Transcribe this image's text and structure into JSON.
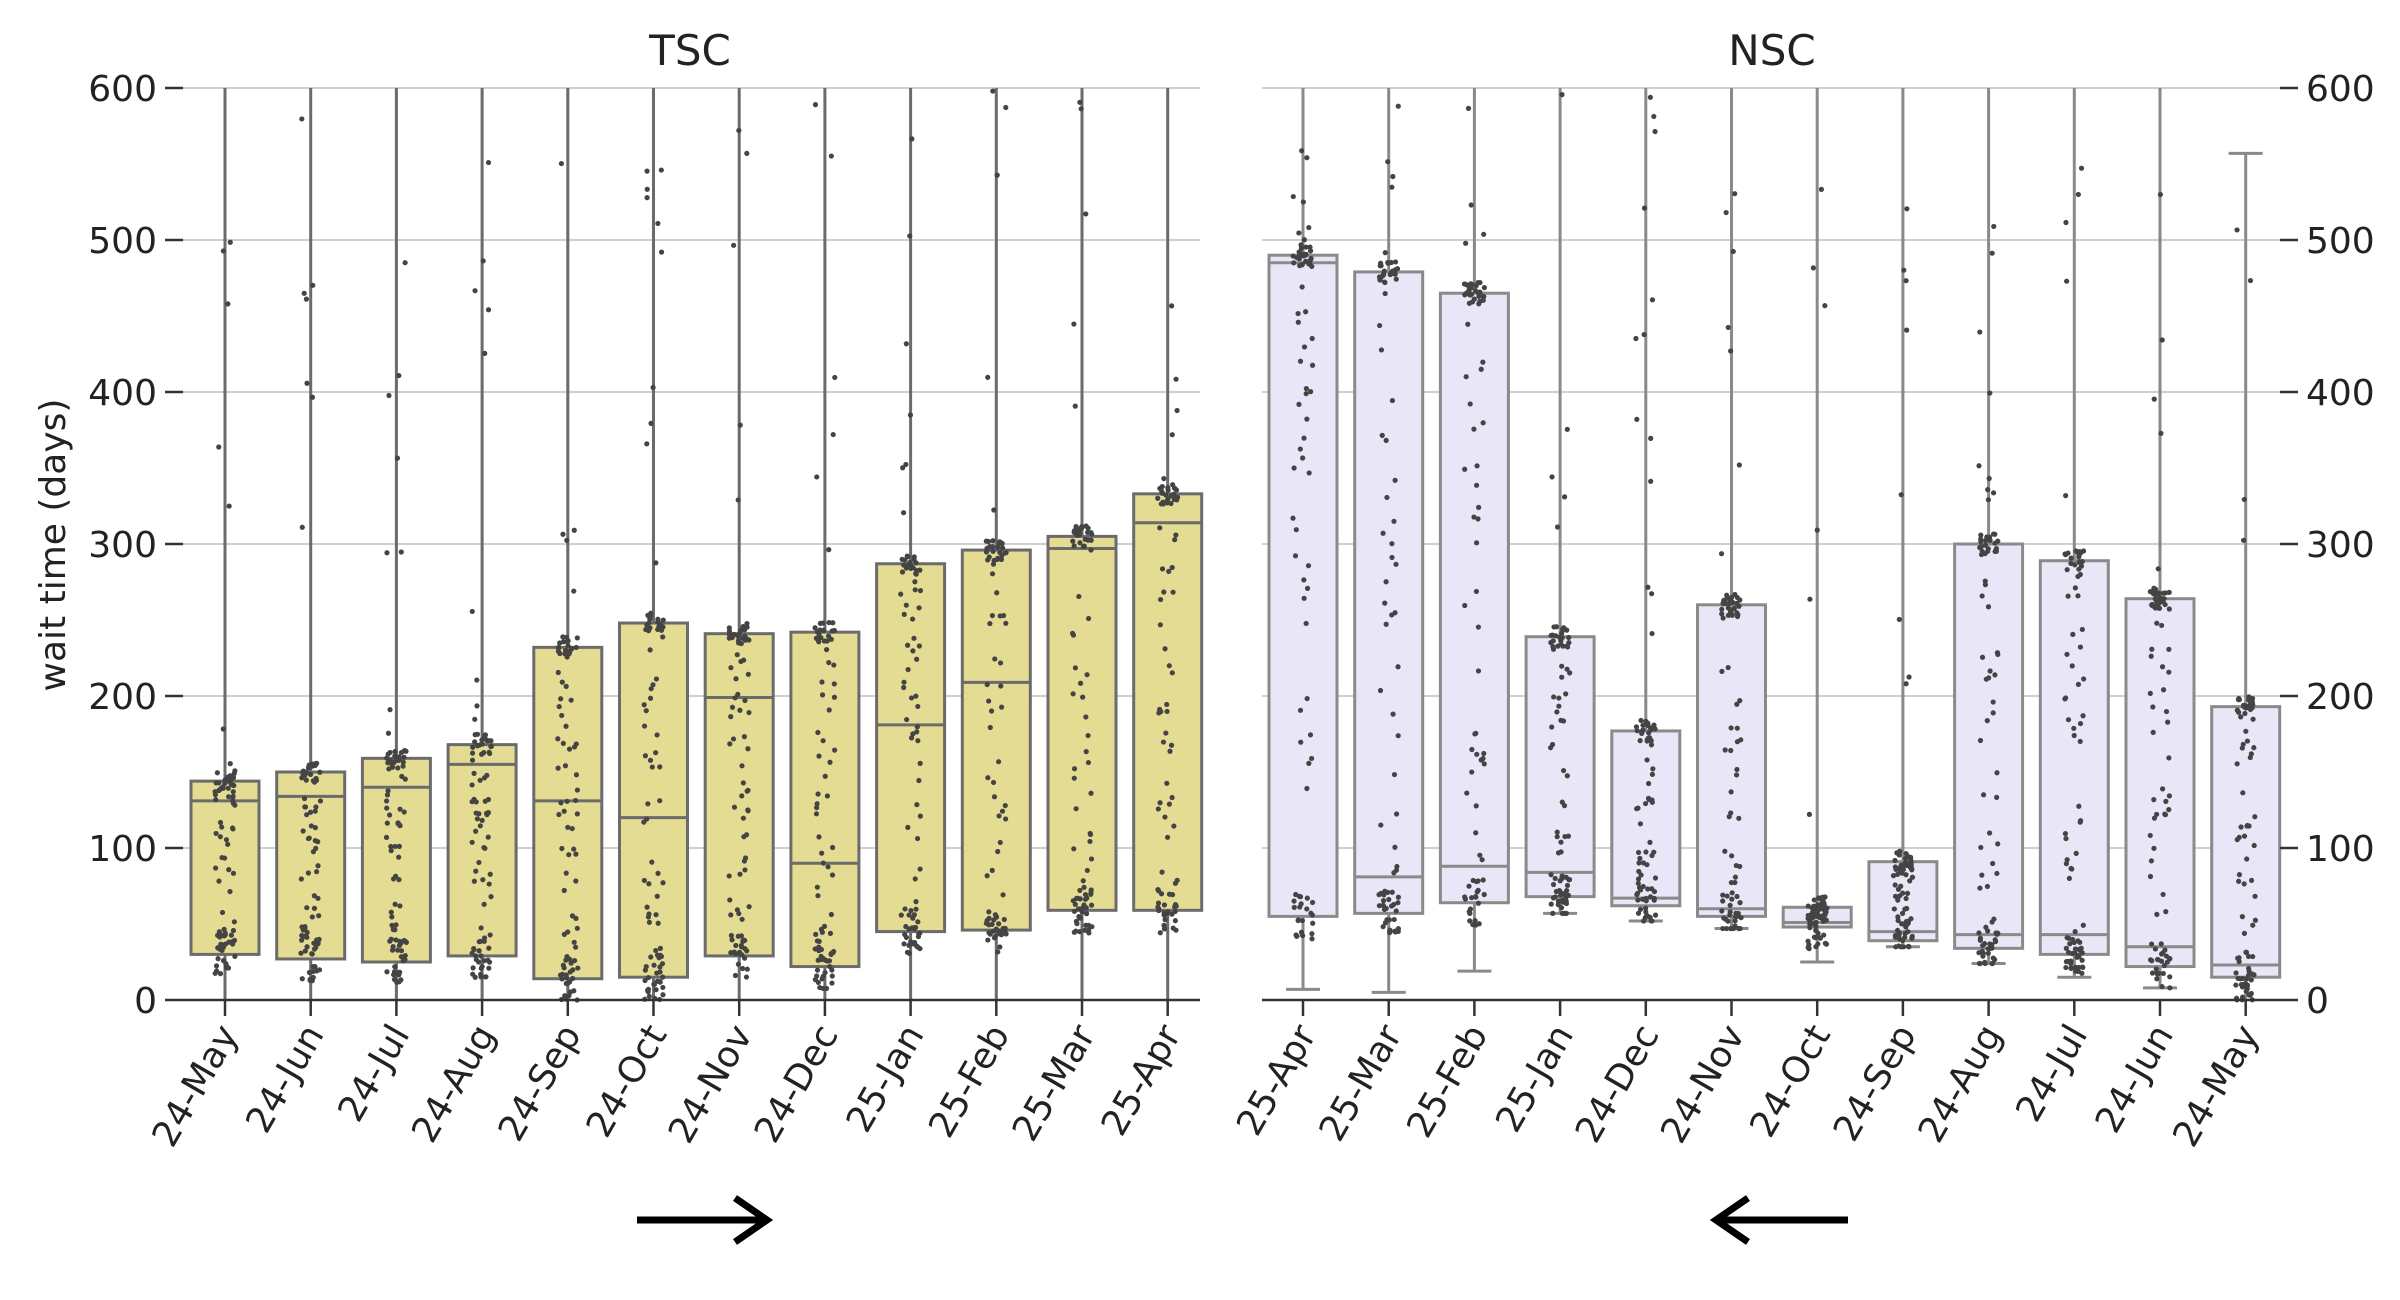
{
  "chart_data": [
    {
      "type": "box",
      "title": "TSC",
      "ylabel": "wait time (days)",
      "ylim": [
        0,
        600
      ],
      "yticks": [
        0,
        100,
        200,
        300,
        400,
        500,
        600
      ],
      "ytick_side": "left",
      "grid": true,
      "box_color": "#e5dc93",
      "edge_color": "#6b6b6b",
      "point_color": "#444444",
      "direction_arrow": "right",
      "categories": [
        "24-May",
        "24-Jun",
        "24-Jul",
        "24-Aug",
        "24-Sep",
        "24-Oct",
        "24-Nov",
        "24-Dec",
        "25-Jan",
        "25-Feb",
        "25-Mar",
        "25-Apr"
      ],
      "boxes": [
        {
          "q1": 30,
          "median": 131,
          "q3": 144,
          "whisker_low": 0,
          "whisker_high": 600
        },
        {
          "q1": 27,
          "median": 134,
          "q3": 150,
          "whisker_low": 0,
          "whisker_high": 600
        },
        {
          "q1": 25,
          "median": 140,
          "q3": 159,
          "whisker_low": 0,
          "whisker_high": 600
        },
        {
          "q1": 29,
          "median": 155,
          "q3": 168,
          "whisker_low": 0,
          "whisker_high": 600
        },
        {
          "q1": 14,
          "median": 131,
          "q3": 232,
          "whisker_low": 0,
          "whisker_high": 600
        },
        {
          "q1": 15,
          "median": 120,
          "q3": 248,
          "whisker_low": 0,
          "whisker_high": 600
        },
        {
          "q1": 29,
          "median": 199,
          "q3": 241,
          "whisker_low": 0,
          "whisker_high": 600
        },
        {
          "q1": 22,
          "median": 90,
          "q3": 242,
          "whisker_low": 0,
          "whisker_high": 600
        },
        {
          "q1": 45,
          "median": 181,
          "q3": 287,
          "whisker_low": 0,
          "whisker_high": 600
        },
        {
          "q1": 46,
          "median": 209,
          "q3": 296,
          "whisker_low": 0,
          "whisker_high": 600
        },
        {
          "q1": 59,
          "median": 297,
          "q3": 305,
          "whisker_low": 0,
          "whisker_high": 600
        },
        {
          "q1": 59,
          "median": 314,
          "q3": 333,
          "whisker_low": 0,
          "whisker_high": 600
        }
      ]
    },
    {
      "type": "box",
      "title": "NSC",
      "ylabel": "",
      "ylim": [
        0,
        600
      ],
      "yticks": [
        0,
        100,
        200,
        300,
        400,
        500,
        600
      ],
      "ytick_side": "right",
      "grid": true,
      "box_color": "#e8e6f7",
      "edge_color": "#8a8a8a",
      "point_color": "#444444",
      "direction_arrow": "left",
      "categories": [
        "25-Apr",
        "25-Mar",
        "25-Feb",
        "25-Jan",
        "24-Dec",
        "24-Nov",
        "24-Oct",
        "24-Sep",
        "24-Aug",
        "24-Jul",
        "24-Jun",
        "24-May"
      ],
      "boxes": [
        {
          "q1": 55,
          "median": 485,
          "q3": 490,
          "whisker_low": 7,
          "whisker_high": 600
        },
        {
          "q1": 57,
          "median": 81,
          "q3": 479,
          "whisker_low": 5,
          "whisker_high": 600
        },
        {
          "q1": 64,
          "median": 88,
          "q3": 465,
          "whisker_low": 19,
          "whisker_high": 600
        },
        {
          "q1": 68,
          "median": 84,
          "q3": 239,
          "whisker_low": 57,
          "whisker_high": 600
        },
        {
          "q1": 62,
          "median": 67,
          "q3": 177,
          "whisker_low": 52,
          "whisker_high": 600
        },
        {
          "q1": 55,
          "median": 60,
          "q3": 260,
          "whisker_low": 47,
          "whisker_high": 600
        },
        {
          "q1": 48,
          "median": 51,
          "q3": 61,
          "whisker_low": 25,
          "whisker_high": 600
        },
        {
          "q1": 39,
          "median": 45,
          "q3": 91,
          "whisker_low": 35,
          "whisker_high": 600
        },
        {
          "q1": 34,
          "median": 43,
          "q3": 300,
          "whisker_low": 24,
          "whisker_high": 600
        },
        {
          "q1": 30,
          "median": 43,
          "q3": 289,
          "whisker_low": 15,
          "whisker_high": 600
        },
        {
          "q1": 22,
          "median": 35,
          "q3": 264,
          "whisker_low": 8,
          "whisker_high": 600
        },
        {
          "q1": 15,
          "median": 23,
          "q3": 193,
          "whisker_low": 0,
          "whisker_high": 557
        }
      ]
    }
  ]
}
